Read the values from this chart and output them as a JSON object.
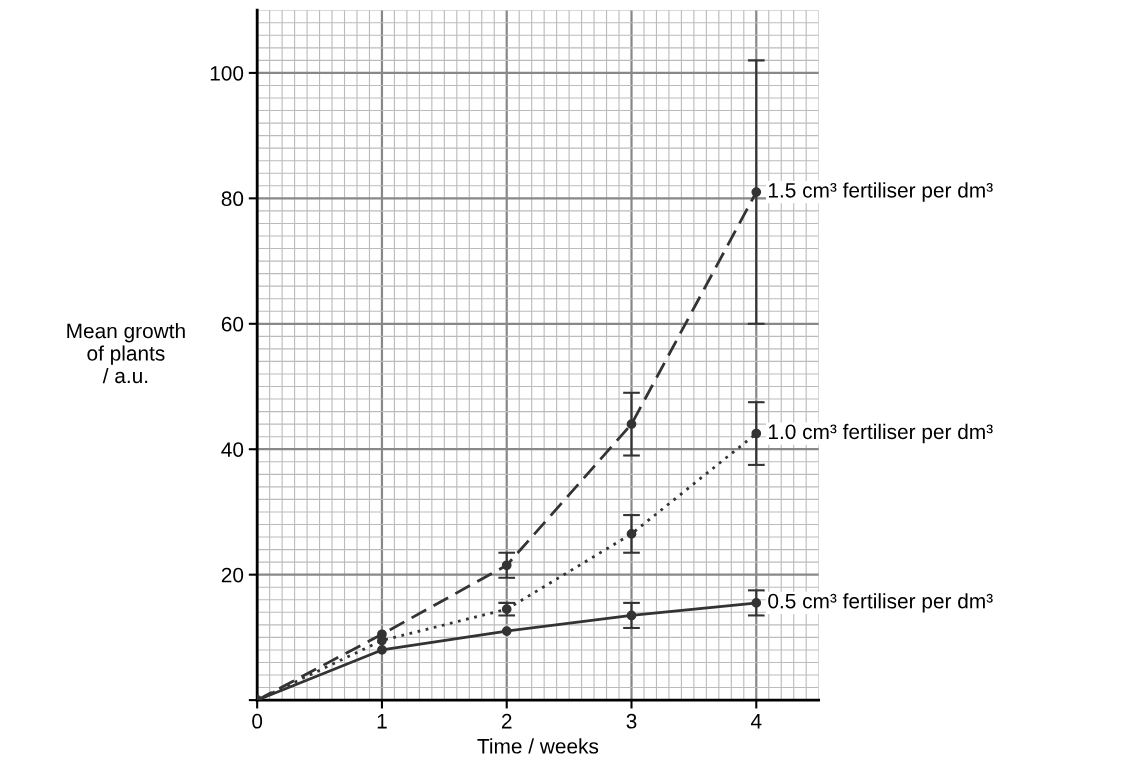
{
  "chart_data": {
    "type": "line",
    "xlabel": "Time / weeks",
    "ylabel": "Mean growth\nof plants\n/ a.u.",
    "x": [
      0,
      1,
      2,
      3,
      4
    ],
    "series": [
      {
        "name": "1.5 cm³ fertiliser per dm³",
        "color": "#333333",
        "line_style": "dashed",
        "values": [
          0,
          10.5,
          21.5,
          44,
          81
        ],
        "errors": [
          null,
          null,
          2,
          5,
          21
        ]
      },
      {
        "name": "1.0 cm³ fertiliser per dm³",
        "color": "#333333",
        "line_style": "dotted",
        "values": [
          0,
          9.5,
          14.5,
          26.5,
          42.5
        ],
        "errors": [
          null,
          null,
          1,
          3,
          5
        ]
      },
      {
        "name": "0.5 cm³ fertiliser per dm³",
        "color": "#333333",
        "line_style": "solid",
        "values": [
          0,
          8,
          11,
          13.5,
          15.5
        ],
        "errors": [
          null,
          null,
          null,
          2,
          2
        ]
      }
    ],
    "xlim": [
      0,
      4.5
    ],
    "ylim": [
      0,
      110
    ],
    "xticks": [
      0,
      1,
      2,
      3,
      4
    ],
    "yticks": [
      {
        "value": 0,
        "label": null
      },
      20,
      40,
      60,
      80,
      100
    ],
    "grid": true,
    "marker": "circle",
    "legend": false
  }
}
